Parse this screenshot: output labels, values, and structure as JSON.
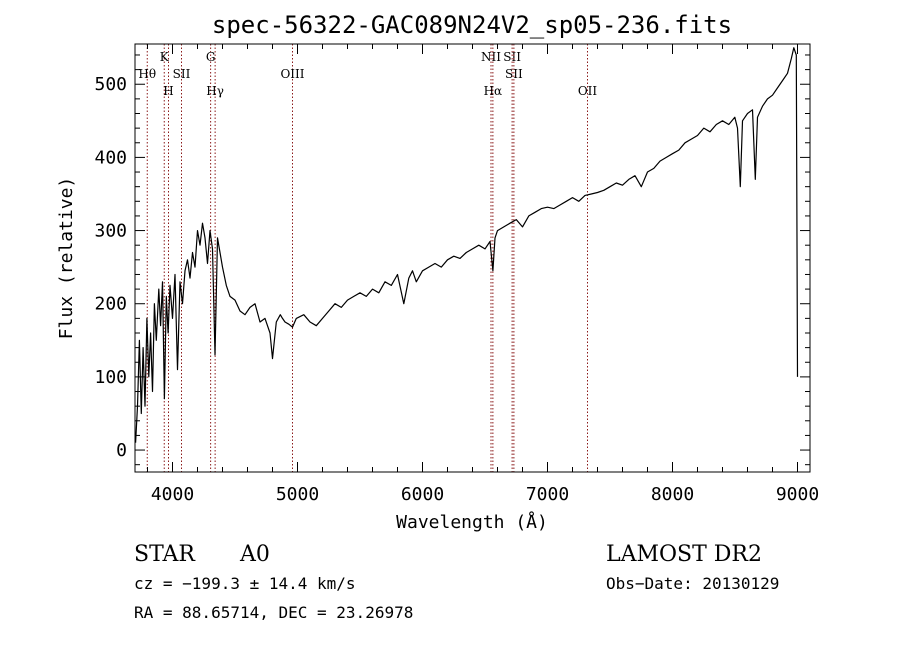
{
  "chart_data": {
    "type": "line",
    "title": "spec-56322-GAC089N24V2_sp05-236.fits",
    "xlabel": "Wavelength (Å)",
    "ylabel": "Flux (relative)",
    "xlim": [
      3700,
      9100
    ],
    "ylim": [
      -30,
      555
    ],
    "x_ticks": [
      4000,
      5000,
      6000,
      7000,
      8000,
      9000
    ],
    "y_ticks": [
      0,
      100,
      200,
      300,
      400,
      500
    ],
    "grid": false,
    "line_color": "#000000",
    "marker_color": "#8b1a1a",
    "spectrum": {
      "x": [
        3705,
        3720,
        3735,
        3750,
        3765,
        3780,
        3795,
        3810,
        3825,
        3840,
        3855,
        3870,
        3890,
        3905,
        3920,
        3935,
        3950,
        3965,
        3980,
        4000,
        4020,
        4040,
        4060,
        4080,
        4100,
        4120,
        4140,
        4160,
        4180,
        4200,
        4220,
        4240,
        4260,
        4280,
        4300,
        4320,
        4340,
        4360,
        4380,
        4400,
        4430,
        4460,
        4500,
        4540,
        4580,
        4620,
        4660,
        4700,
        4740,
        4780,
        4800,
        4830,
        4862,
        4880,
        4900,
        4930,
        4960,
        4990,
        5050,
        5100,
        5150,
        5200,
        5250,
        5300,
        5350,
        5400,
        5450,
        5500,
        5550,
        5600,
        5650,
        5700,
        5750,
        5800,
        5850,
        5890,
        5920,
        5950,
        6000,
        6050,
        6100,
        6150,
        6200,
        6250,
        6300,
        6350,
        6400,
        6450,
        6500,
        6540,
        6563,
        6580,
        6600,
        6650,
        6700,
        6750,
        6800,
        6850,
        6900,
        6950,
        7000,
        7050,
        7100,
        7150,
        7200,
        7250,
        7300,
        7350,
        7400,
        7450,
        7500,
        7550,
        7600,
        7650,
        7700,
        7750,
        7800,
        7850,
        7900,
        7950,
        8000,
        8050,
        8100,
        8150,
        8200,
        8250,
        8300,
        8350,
        8400,
        8450,
        8498,
        8520,
        8542,
        8560,
        8600,
        8640,
        8662,
        8680,
        8720,
        8760,
        8800,
        8840,
        8880,
        8920,
        8950,
        8970,
        8990,
        9000
      ],
      "y": [
        10,
        60,
        150,
        50,
        140,
        60,
        180,
        100,
        160,
        80,
        200,
        150,
        220,
        170,
        230,
        70,
        210,
        160,
        225,
        180,
        240,
        110,
        230,
        200,
        245,
        260,
        235,
        270,
        250,
        300,
        280,
        310,
        290,
        255,
        300,
        275,
        130,
        290,
        270,
        250,
        225,
        210,
        205,
        190,
        185,
        195,
        200,
        175,
        180,
        160,
        125,
        175,
        185,
        180,
        175,
        172,
        168,
        180,
        185,
        175,
        170,
        180,
        190,
        200,
        195,
        205,
        210,
        215,
        210,
        220,
        215,
        230,
        225,
        240,
        200,
        235,
        245,
        230,
        245,
        250,
        255,
        250,
        260,
        265,
        262,
        270,
        275,
        280,
        275,
        285,
        245,
        290,
        300,
        305,
        310,
        315,
        305,
        320,
        325,
        330,
        332,
        330,
        335,
        340,
        345,
        340,
        348,
        350,
        352,
        355,
        360,
        365,
        362,
        370,
        375,
        360,
        380,
        385,
        395,
        400,
        405,
        410,
        420,
        425,
        430,
        440,
        435,
        445,
        450,
        445,
        455,
        440,
        360,
        450,
        460,
        465,
        370,
        455,
        470,
        480,
        485,
        495,
        505,
        515,
        535,
        550,
        540,
        100
      ]
    },
    "lines": [
      {
        "name": "Hθ",
        "x": 3798,
        "tier": 2
      },
      {
        "name": "K",
        "x": 3934,
        "tier": 1
      },
      {
        "name": "H",
        "x": 3968,
        "tier": 3
      },
      {
        "name": "SII",
        "x": 4072,
        "tier": 2
      },
      {
        "name": "G",
        "x": 4305,
        "tier": 1
      },
      {
        "name": "Hγ",
        "x": 4341,
        "tier": 3
      },
      {
        "name": "OIII",
        "x": 4960,
        "tier": 2
      },
      {
        "name": "NII",
        "x": 6548,
        "tier": 1
      },
      {
        "name": "Hα",
        "x": 6563,
        "tier": 3
      },
      {
        "name": "SII",
        "x": 6717,
        "tier": 1
      },
      {
        "name": "SII",
        "x": 6731,
        "tier": 2
      },
      {
        "name": "OII",
        "x": 7320,
        "tier": 3
      }
    ]
  },
  "footer": {
    "class_label": "STAR",
    "subclass": "A0",
    "survey": "LAMOST DR2",
    "redshift": "cz = −199.3 ± 14.4 km/s",
    "obs_date": "Obs−Date: 20130129",
    "coords": "RA =  88.65714, DEC =  23.26978"
  }
}
